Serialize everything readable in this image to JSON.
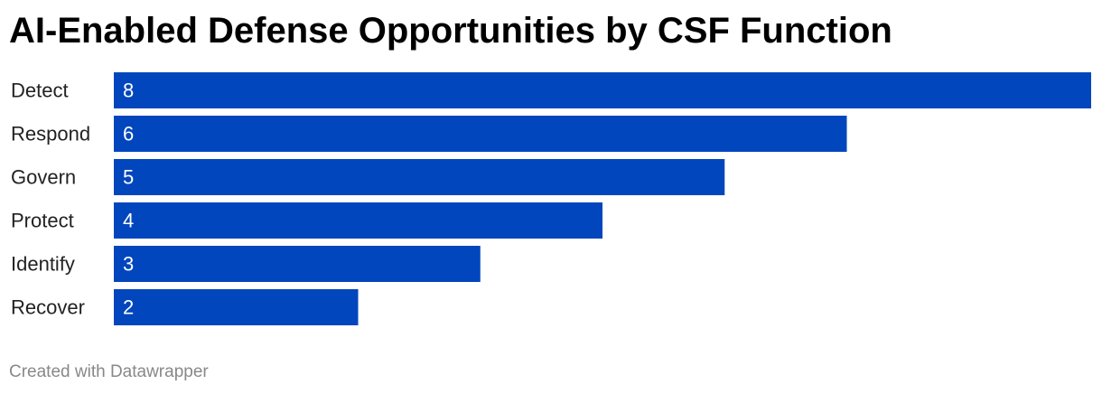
{
  "title": "AI-Enabled Defense Opportunities by CSF Function",
  "footer": "Created with Datawrapper",
  "colors": {
    "bar": "#0146bd",
    "value_label": "#ffffff",
    "category_label": "#222222",
    "footer": "#888888"
  },
  "chart_data": {
    "type": "bar",
    "orientation": "horizontal",
    "title": "AI-Enabled Defense Opportunities by CSF Function",
    "xlabel": "",
    "ylabel": "",
    "categories": [
      "Detect",
      "Respond",
      "Govern",
      "Protect",
      "Identify",
      "Recover"
    ],
    "values": [
      8,
      6,
      5,
      4,
      3,
      2
    ],
    "xlim": [
      0,
      8
    ],
    "grid": false,
    "legend": "none",
    "value_labels": "inside-left"
  }
}
